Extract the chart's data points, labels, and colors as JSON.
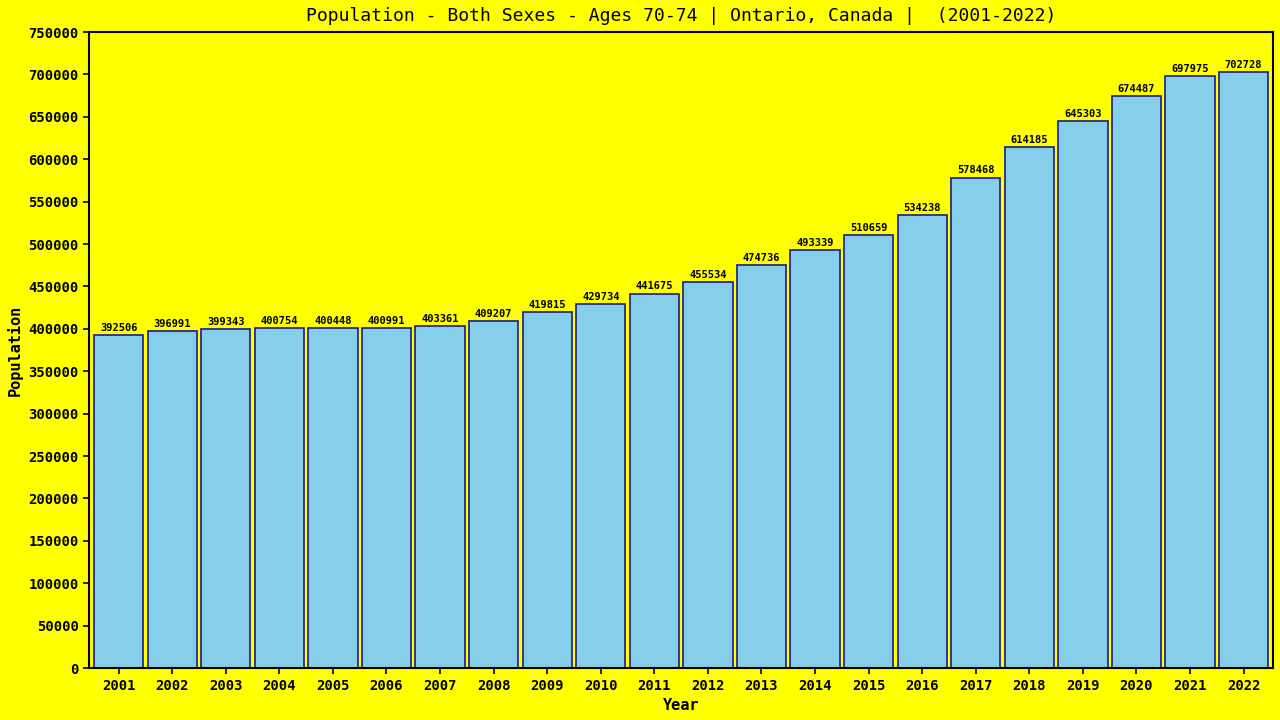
{
  "title": "Population - Both Sexes - Ages 70-74 | Ontario, Canada |  (2001-2022)",
  "xlabel": "Year",
  "ylabel": "Population",
  "background_color": "#FFFF00",
  "bar_color": "#87CEEB",
  "bar_edge_color": "#1a1a8c",
  "years": [
    2001,
    2002,
    2003,
    2004,
    2005,
    2006,
    2007,
    2008,
    2009,
    2010,
    2011,
    2012,
    2013,
    2014,
    2015,
    2016,
    2017,
    2018,
    2019,
    2020,
    2021,
    2022
  ],
  "values": [
    392506,
    396991,
    399343,
    400754,
    400448,
    400991,
    403361,
    409207,
    419815,
    429734,
    441675,
    455534,
    474736,
    493339,
    510659,
    534238,
    578468,
    614185,
    645303,
    674487,
    697975,
    702728
  ],
  "ylim": [
    0,
    750000
  ],
  "yticks": [
    0,
    50000,
    100000,
    150000,
    200000,
    250000,
    300000,
    350000,
    400000,
    450000,
    500000,
    550000,
    600000,
    650000,
    700000,
    750000
  ],
  "title_fontsize": 13,
  "axis_label_fontsize": 11,
  "tick_fontsize": 10,
  "value_fontsize": 7.5
}
